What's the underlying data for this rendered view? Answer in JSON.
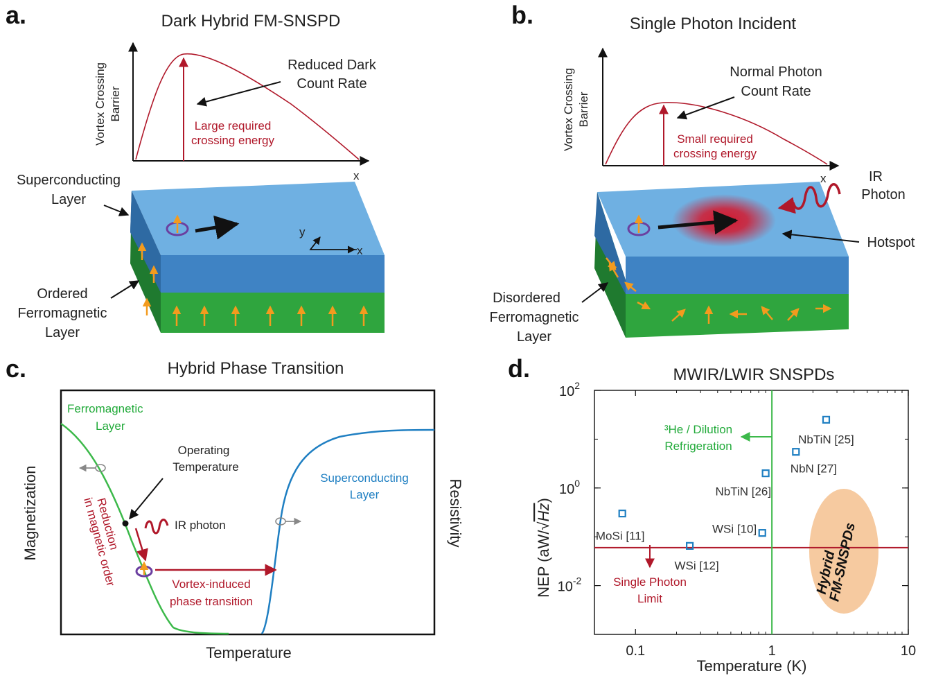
{
  "panel_a": {
    "letter": "a.",
    "title": "Dark Hybrid FM-SNSPD",
    "y_label_line1": "Vortex Crossing",
    "y_label_line2": "Barrier",
    "x_label": "x",
    "callout_line1": "Reduced Dark",
    "callout_line2": "Count Rate",
    "energy_line1": "Large required",
    "energy_line2": "crossing energy",
    "sc_label_line1": "Superconducting",
    "sc_label_line2": "Layer",
    "fm_label_line1": "Ordered",
    "fm_label_line2": "Ferromagnetic",
    "fm_label_line3": "Layer",
    "axis_y": "y",
    "axis_x": "x"
  },
  "panel_b": {
    "letter": "b.",
    "title": "Single Photon Incident",
    "y_label_line1": "Vortex Crossing",
    "y_label_line2": "Barrier",
    "x_label": "x",
    "callout_line1": "Normal Photon",
    "callout_line2": "Count Rate",
    "energy_line1": "Small required",
    "energy_line2": "crossing energy",
    "ir_line1": "IR",
    "ir_line2": "Photon",
    "hotspot": "Hotspot",
    "fm_label_line1": "Disordered",
    "fm_label_line2": "Ferromagnetic",
    "fm_label_line3": "Layer"
  },
  "panel_c": {
    "letter": "c.",
    "title": "Hybrid Phase Transition",
    "y_left": "Magnetization",
    "y_right": "Resistivity",
    "x_label": "Temperature",
    "fm_line1": "Ferromagnetic",
    "fm_line2": "Layer",
    "sc_line1": "Superconducting",
    "sc_line2": "Layer",
    "op_line1": "Operating",
    "op_line2": "Temperature",
    "ir": "IR photon",
    "red_line1": "Reduction",
    "red_line2": "in magnetic order",
    "vortex_line1": "Vortex-induced",
    "vortex_line2": "phase transition",
    "colors": {
      "fm": "#3cb94a",
      "sc": "#1f7fc2",
      "note": "#b0182a"
    }
  },
  "panel_d": {
    "letter": "d.",
    "chart_data": {
      "type": "scatter",
      "title": "MWIR/LWIR SNSPDs",
      "xlabel": "Temperature (K)",
      "ylabel_prefix": "NEP (aW/",
      "ylabel_rad": "Hz",
      "ylabel_suffix": ")",
      "x_scale": "log",
      "y_scale": "log",
      "xlim": [
        0.05,
        10
      ],
      "ylim": [
        0.001,
        100
      ],
      "x_ticks": [
        {
          "v": 0.1,
          "label": "0.1"
        },
        {
          "v": 1,
          "label": "1"
        },
        {
          "v": 10,
          "label": "10"
        }
      ],
      "y_ticks": [
        {
          "v": 100,
          "base": "10",
          "exp": "2"
        },
        {
          "v": 1,
          "base": "10",
          "exp": "0"
        },
        {
          "v": 0.01,
          "base": "10",
          "exp": "-2"
        }
      ],
      "points": [
        {
          "label": "MoSi [11]",
          "x": 0.08,
          "y": 0.3
        },
        {
          "label": "WSi [12]",
          "x": 0.25,
          "y": 0.065
        },
        {
          "label": "WSi [10]",
          "x": 0.85,
          "y": 0.12
        },
        {
          "label": "NbTiN [26]",
          "x": 0.9,
          "y": 2
        },
        {
          "label": "NbN [27]",
          "x": 1.5,
          "y": 5.5
        },
        {
          "label": "NbTiN [25]",
          "x": 2.5,
          "y": 25
        }
      ],
      "single_photon_limit": 0.06,
      "dilution_temperature": 1,
      "hline_label_line1": "Single Photon",
      "hline_label_line2": "Limit",
      "vline_label_line1": "³He / Dilution",
      "vline_label_line2": "Refrigeration",
      "region_label_line1": "Hybrid",
      "region_label_line2": "FM-SNSPDs",
      "colors": {
        "points": "#1f7fc2",
        "hline": "#b0182a",
        "vline": "#3cb94a",
        "region": "#f6caa0"
      }
    }
  }
}
